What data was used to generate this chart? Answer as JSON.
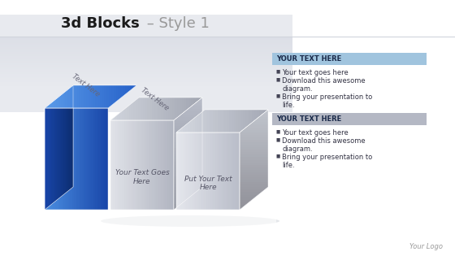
{
  "title_bold": "3d Blocks",
  "title_thin": " – Style 1",
  "bg_color": "#f2f4f7",
  "white": "#ffffff",
  "header_band_color": "#e4e8ee",
  "blue_front_light": "#3a7fd5",
  "blue_front_dark": "#1a4aaa",
  "blue_left_dark": "#0f3080",
  "blue_top_light": "#6aa0e8",
  "blue_top_dark": "#2560c0",
  "gray_front_light": "#e8eaee",
  "gray_front_dark": "#b8bcc8",
  "gray_top_light": "#d8dce4",
  "gray_top_dark": "#a8adb8",
  "gray_side_light": "#c8ccd4",
  "gray_side_dark": "#989caa",
  "text_box1_header": "YOUR TEXT HERE",
  "text_box1_header_bg": "#a0c4de",
  "text_box2_header": "YOUR TEXT HERE",
  "text_box2_header_bg": "#b4b8c4",
  "bullet_color": "#555566",
  "bullet_points": [
    "Your text goes here",
    "Download this awesome\ndiagram.",
    "Bring your presentation to\nlife."
  ],
  "block1_label": "Text Here",
  "block2_label": "Text Here",
  "block3_label": "Your Text Goes\nHere",
  "block4_label": "Put Your Text\nHere",
  "logo_text": "Your Logo",
  "shadow_color": "#c8ccd4"
}
